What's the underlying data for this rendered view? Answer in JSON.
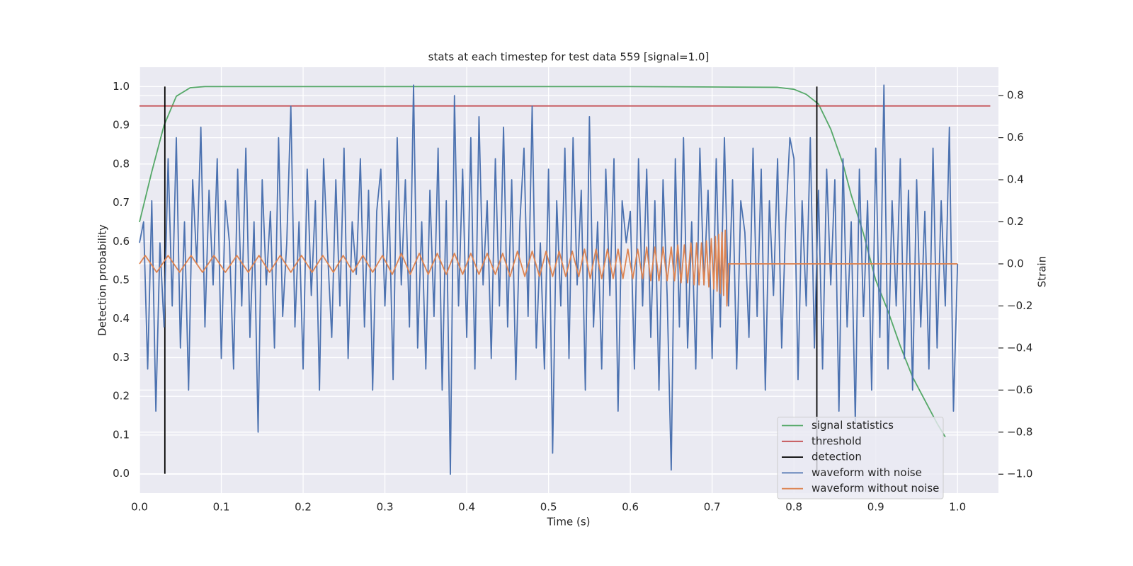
{
  "chart_data": {
    "type": "line",
    "title": "stats at each timestep for test data 559 [signal=1.0]",
    "x_label": "Time (s)",
    "y_label": "Detection probability",
    "y2_label": "Strain",
    "xlim": [
      0,
      1.05
    ],
    "ylim": [
      -0.05,
      1.05
    ],
    "y2lim": [
      -1.09,
      0.935
    ],
    "xticks": [
      {
        "value": 0,
        "label": "0.0"
      },
      {
        "value": 0.1,
        "label": "0.1"
      },
      {
        "value": 0.2,
        "label": "0.2"
      },
      {
        "value": 0.3,
        "label": "0.3"
      },
      {
        "value": 0.4,
        "label": "0.4"
      },
      {
        "value": 0.5,
        "label": "0.5"
      },
      {
        "value": 0.6,
        "label": "0.6"
      },
      {
        "value": 0.7,
        "label": "0.7"
      },
      {
        "value": 0.8,
        "label": "0.8"
      },
      {
        "value": 0.9,
        "label": "0.9"
      },
      {
        "value": 1.0,
        "label": "1.0"
      }
    ],
    "yticks": [
      {
        "value": 0,
        "label": "0.0"
      },
      {
        "value": 0.1,
        "label": "0.1"
      },
      {
        "value": 0.2,
        "label": "0.2"
      },
      {
        "value": 0.3,
        "label": "0.3"
      },
      {
        "value": 0.4,
        "label": "0.4"
      },
      {
        "value": 0.5,
        "label": "0.5"
      },
      {
        "value": 0.6,
        "label": "0.6"
      },
      {
        "value": 0.7,
        "label": "0.7"
      },
      {
        "value": 0.8,
        "label": "0.8"
      },
      {
        "value": 0.9,
        "label": "0.9"
      },
      {
        "value": 1.0,
        "label": "1.0"
      }
    ],
    "y2ticks": [
      {
        "value": -1.0,
        "label": "−1.0"
      },
      {
        "value": -0.8,
        "label": "−0.8"
      },
      {
        "value": -0.6,
        "label": "−0.6"
      },
      {
        "value": -0.4,
        "label": "−0.4"
      },
      {
        "value": -0.2,
        "label": "−0.2"
      },
      {
        "value": 0,
        "label": "0.0"
      },
      {
        "value": 0.2,
        "label": "0.2"
      },
      {
        "value": 0.4,
        "label": "0.4"
      },
      {
        "value": 0.6,
        "label": "0.6"
      },
      {
        "value": 0.8,
        "label": "0.8"
      }
    ],
    "grid": true,
    "legend": "lower right",
    "series": [
      {
        "name": "signal statistics",
        "type": "line",
        "axis": "y",
        "color": "#55a868",
        "x": [
          0,
          0.015,
          0.03,
          0.045,
          0.062,
          0.08,
          0.2,
          0.4,
          0.6,
          0.78,
          0.8,
          0.815,
          0.83,
          0.845,
          0.86,
          0.87,
          0.885,
          0.9,
          0.915,
          0.93,
          0.945,
          0.96,
          0.975,
          0.985
        ],
        "values": [
          0.65,
          0.78,
          0.9,
          0.975,
          0.997,
          1.0,
          1.0,
          1.0,
          1.0,
          0.998,
          0.993,
          0.98,
          0.955,
          0.89,
          0.8,
          0.72,
          0.62,
          0.5,
          0.42,
          0.33,
          0.25,
          0.19,
          0.13,
          0.095
        ]
      },
      {
        "name": "threshold",
        "type": "line",
        "axis": "y",
        "color": "#c44e52",
        "x": [
          0,
          1.04
        ],
        "values": [
          0.95,
          0.95
        ]
      },
      {
        "name": "detection",
        "type": "vlines",
        "axis": "y",
        "color": "#000000",
        "x": [
          0.031,
          0.828
        ],
        "ymin": 0,
        "ymax": 1
      },
      {
        "name": "waveform with noise",
        "type": "line",
        "axis": "y2",
        "color": "#4c72b0",
        "x": [
          0,
          0.005,
          0.01,
          0.015,
          0.02,
          0.025,
          0.03,
          0.035,
          0.04,
          0.045,
          0.05,
          0.055,
          0.06,
          0.065,
          0.07,
          0.075,
          0.08,
          0.085,
          0.09,
          0.095,
          0.1,
          0.105,
          0.11,
          0.115,
          0.12,
          0.125,
          0.13,
          0.135,
          0.14,
          0.145,
          0.15,
          0.155,
          0.16,
          0.165,
          0.17,
          0.175,
          0.18,
          0.185,
          0.19,
          0.195,
          0.2,
          0.205,
          0.21,
          0.215,
          0.22,
          0.225,
          0.23,
          0.235,
          0.24,
          0.245,
          0.25,
          0.255,
          0.26,
          0.265,
          0.27,
          0.275,
          0.28,
          0.285,
          0.29,
          0.295,
          0.3,
          0.305,
          0.31,
          0.315,
          0.32,
          0.325,
          0.33,
          0.335,
          0.34,
          0.345,
          0.35,
          0.355,
          0.36,
          0.365,
          0.37,
          0.375,
          0.38,
          0.385,
          0.39,
          0.395,
          0.4,
          0.405,
          0.41,
          0.415,
          0.42,
          0.425,
          0.43,
          0.435,
          0.44,
          0.445,
          0.45,
          0.455,
          0.46,
          0.465,
          0.47,
          0.475,
          0.48,
          0.485,
          0.49,
          0.495,
          0.5,
          0.505,
          0.51,
          0.515,
          0.52,
          0.525,
          0.53,
          0.535,
          0.54,
          0.545,
          0.55,
          0.555,
          0.56,
          0.565,
          0.57,
          0.575,
          0.58,
          0.585,
          0.59,
          0.595,
          0.6,
          0.605,
          0.61,
          0.615,
          0.62,
          0.625,
          0.63,
          0.635,
          0.64,
          0.645,
          0.65,
          0.655,
          0.66,
          0.665,
          0.67,
          0.675,
          0.68,
          0.685,
          0.69,
          0.695,
          0.7,
          0.705,
          0.71,
          0.715,
          0.72,
          0.725,
          0.73,
          0.735,
          0.74,
          0.745,
          0.75,
          0.755,
          0.76,
          0.765,
          0.77,
          0.775,
          0.78,
          0.785,
          0.79,
          0.795,
          0.8,
          0.805,
          0.81,
          0.815,
          0.82,
          0.825,
          0.83,
          0.835,
          0.84,
          0.845,
          0.85,
          0.855,
          0.86,
          0.865,
          0.87,
          0.875,
          0.88,
          0.885,
          0.89,
          0.895,
          0.9,
          0.905,
          0.91,
          0.915,
          0.92,
          0.925,
          0.93,
          0.935,
          0.94,
          0.945,
          0.95,
          0.955,
          0.96,
          0.965,
          0.97,
          0.975,
          0.98,
          0.985,
          0.99,
          0.995,
          1.0
        ],
        "values": [
          0.1,
          0.2,
          -0.5,
          0.3,
          -0.7,
          0.1,
          -0.3,
          0.5,
          -0.2,
          0.6,
          -0.4,
          0.2,
          -0.6,
          0.4,
          0.0,
          0.65,
          -0.3,
          0.35,
          -0.1,
          0.5,
          -0.45,
          0.3,
          0.1,
          -0.5,
          0.45,
          -0.2,
          0.55,
          -0.35,
          0.2,
          -0.8,
          0.4,
          -0.1,
          0.25,
          -0.4,
          0.6,
          -0.25,
          0.1,
          0.75,
          -0.3,
          0.2,
          -0.5,
          0.45,
          -0.15,
          0.3,
          -0.6,
          0.5,
          0.05,
          -0.35,
          0.4,
          -0.2,
          0.55,
          -0.45,
          0.2,
          -0.05,
          0.5,
          -0.3,
          0.35,
          -0.6,
          0.25,
          0.45,
          -0.2,
          0.3,
          -0.55,
          0.6,
          -0.1,
          0.4,
          -0.3,
          0.85,
          -0.4,
          0.2,
          -0.5,
          0.35,
          -0.25,
          0.55,
          -0.6,
          0.3,
          -1.0,
          0.8,
          -0.2,
          0.45,
          -0.35,
          0.6,
          -0.5,
          0.7,
          -0.1,
          0.3,
          -0.45,
          0.5,
          -0.2,
          0.65,
          -0.3,
          0.4,
          -0.55,
          0.2,
          0.55,
          -0.25,
          0.75,
          -0.4,
          0.1,
          -0.5,
          0.45,
          -0.9,
          0.3,
          -0.2,
          0.55,
          -0.45,
          0.6,
          -0.1,
          0.35,
          -0.6,
          0.7,
          -0.3,
          0.2,
          -0.5,
          0.45,
          -0.15,
          0.5,
          -0.7,
          0.3,
          0.1,
          0.25,
          -0.5,
          0.5,
          -0.2,
          0.45,
          -0.35,
          0.3,
          -0.6,
          0.4,
          -0.15,
          -0.98,
          0.5,
          -0.3,
          0.6,
          -0.4,
          0.2,
          -0.5,
          0.55,
          -0.1,
          0.35,
          -0.45,
          0.5,
          -0.3,
          0.6,
          -0.2,
          0.4,
          -0.5,
          0.3,
          0.15,
          -0.35,
          0.55,
          -0.25,
          0.45,
          -0.6,
          0.3,
          -0.15,
          0.5,
          -0.4,
          0.2,
          0.6,
          0.5,
          -0.55,
          0.3,
          -0.2,
          0.6,
          -0.4,
          0.35,
          -0.5,
          0.45,
          -0.1,
          0.4,
          -0.7,
          0.5,
          -0.3,
          0.2,
          -0.75,
          0.45,
          -0.25,
          0.3,
          -0.6,
          0.55,
          -0.35,
          0.85,
          -0.5,
          0.3,
          -0.2,
          0.5,
          -0.45,
          0.35,
          -0.6,
          0.4,
          -0.3,
          0.25,
          -0.5,
          0.55,
          -0.4,
          0.3,
          -0.2,
          0.65,
          -0.7,
          0.0
        ]
      },
      {
        "name": "waveform without noise",
        "type": "line",
        "axis": "y2",
        "color": "#dd8452",
        "x": [
          0,
          0.007,
          0.021,
          0.035,
          0.049,
          0.063,
          0.077,
          0.091,
          0.105,
          0.119,
          0.133,
          0.146,
          0.159,
          0.172,
          0.185,
          0.198,
          0.211,
          0.224,
          0.237,
          0.249,
          0.261,
          0.273,
          0.285,
          0.297,
          0.309,
          0.32,
          0.331,
          0.342,
          0.353,
          0.364,
          0.375,
          0.385,
          0.395,
          0.405,
          0.415,
          0.425,
          0.435,
          0.444,
          0.453,
          0.462,
          0.471,
          0.48,
          0.489,
          0.497,
          0.505,
          0.513,
          0.521,
          0.529,
          0.537,
          0.544,
          0.551,
          0.558,
          0.565,
          0.572,
          0.579,
          0.585,
          0.591,
          0.597,
          0.603,
          0.609,
          0.615,
          0.62,
          0.625,
          0.63,
          0.635,
          0.64,
          0.645,
          0.65,
          0.654,
          0.658,
          0.662,
          0.666,
          0.67,
          0.674,
          0.678,
          0.681,
          0.684,
          0.687,
          0.69,
          0.693,
          0.696,
          0.699,
          0.702,
          0.704,
          0.706,
          0.708,
          0.71,
          0.712,
          0.714,
          0.716,
          0.718,
          0.72,
          1.0
        ],
        "values": [
          0,
          0.04,
          -0.04,
          0.04,
          -0.04,
          0.04,
          -0.04,
          0.04,
          -0.04,
          0.04,
          -0.04,
          0.04,
          -0.04,
          0.04,
          -0.04,
          0.04,
          -0.04,
          0.04,
          -0.04,
          0.04,
          -0.04,
          0.04,
          -0.04,
          0.04,
          -0.05,
          0.05,
          -0.05,
          0.05,
          -0.05,
          0.05,
          -0.05,
          0.05,
          -0.05,
          0.05,
          -0.05,
          0.05,
          -0.05,
          0.05,
          -0.06,
          0.06,
          -0.06,
          0.06,
          -0.06,
          0.06,
          -0.06,
          0.06,
          -0.06,
          0.06,
          -0.06,
          0.07,
          -0.07,
          0.07,
          -0.07,
          0.07,
          -0.07,
          0.07,
          -0.07,
          0.07,
          -0.07,
          0.07,
          -0.07,
          0.08,
          -0.08,
          0.08,
          -0.08,
          0.08,
          -0.08,
          0.08,
          -0.08,
          0.09,
          -0.09,
          0.09,
          -0.09,
          0.1,
          -0.1,
          0.1,
          -0.1,
          0.1,
          -0.1,
          0.11,
          -0.11,
          0.12,
          -0.12,
          0.13,
          -0.13,
          0.14,
          -0.14,
          0.15,
          -0.15,
          0.16,
          -0.2,
          0,
          0
        ]
      }
    ]
  }
}
